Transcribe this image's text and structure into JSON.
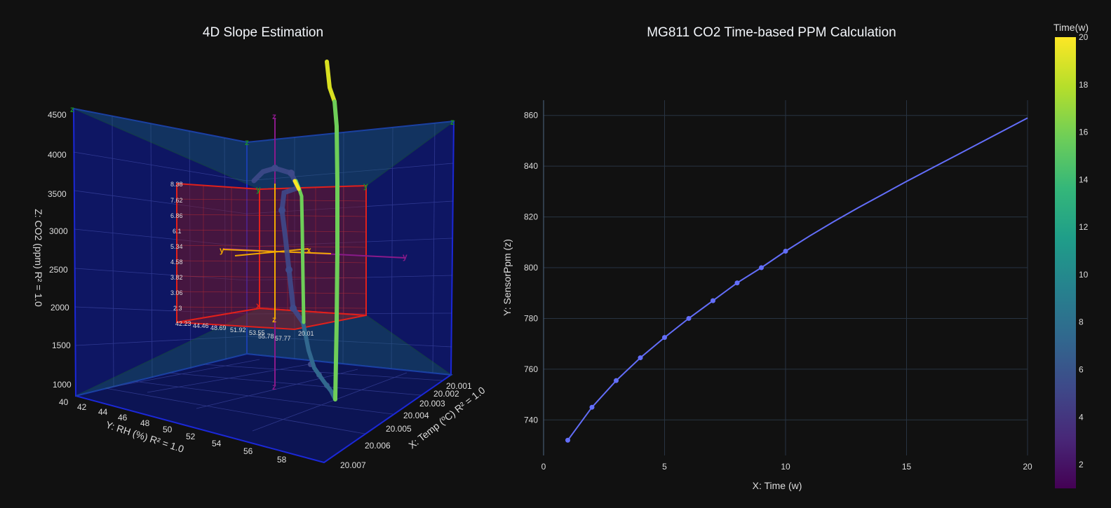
{
  "chart_data": [
    {
      "type": "scatter3d",
      "title": "4D Slope Estimation",
      "x_axis": {
        "label": "X: Temp (ºC) R² = 1.0",
        "ticks": [
          "20.001",
          "20.002",
          "20.003",
          "20.004",
          "20.005",
          "20.006",
          "20.007"
        ]
      },
      "y_axis": {
        "label": "Y: RH (%) R² = 1.0",
        "ticks": [
          "40",
          "42",
          "44",
          "46",
          "48",
          "50",
          "52",
          "54",
          "56",
          "58"
        ]
      },
      "z_axis": {
        "label": "Z: CO2 (ppm) R² = 1.0",
        "ticks": [
          "1000",
          "1500",
          "2000",
          "2500",
          "3000",
          "3500",
          "4000",
          "4500"
        ]
      },
      "inner_scale_ticks": [
        "8.38",
        "7.62",
        "6.86",
        "6.1",
        "5.34",
        "4.58",
        "3.82",
        "3.06",
        "2.3"
      ],
      "inner_floor_ticks": [
        "42.23",
        "44.46",
        "48.69",
        "51.92",
        "53.55",
        "55.78",
        "57.77",
        "20.01"
      ],
      "axis_markers": [
        "x",
        "y",
        "z"
      ],
      "color_axis": "Time(w)"
    },
    {
      "type": "line",
      "title": "MG811 CO2 Time-based PPM Calculation",
      "xlabel": "X: Time (w)",
      "ylabel": "Y: SensorPpm (z)",
      "xlim": [
        0,
        20
      ],
      "ylim": [
        726,
        866
      ],
      "xticks": [
        0,
        5,
        10,
        15,
        20
      ],
      "yticks": [
        740,
        760,
        780,
        800,
        820,
        840,
        860
      ],
      "grid": true,
      "series": [
        {
          "color": "#636efa",
          "marker_x": [
            1,
            2,
            3,
            4,
            5,
            6,
            7,
            8,
            9,
            10
          ],
          "marker_y": [
            732.0,
            745.0,
            755.5,
            764.5,
            772.5,
            780.0,
            787.0,
            794.0,
            800.0,
            806.5
          ],
          "x": [
            1,
            2,
            3,
            4,
            5,
            6,
            7,
            8,
            9,
            10,
            11,
            12,
            13,
            14,
            15,
            16,
            17,
            18,
            19,
            20
          ],
          "y": [
            732.0,
            745.0,
            755.5,
            764.5,
            772.5,
            780.0,
            787.0,
            794.0,
            800.0,
            806.5,
            812.5,
            818.2,
            823.6,
            828.8,
            834.0,
            839.0,
            844.0,
            849.0,
            854.0,
            859.0
          ]
        }
      ]
    }
  ],
  "colorbar": {
    "title": "Time(w)",
    "min": 1,
    "max": 20,
    "ticks": [
      2,
      4,
      6,
      8,
      10,
      12,
      14,
      16,
      18,
      20
    ],
    "colorscale": [
      "#440154",
      "#482878",
      "#3e4989",
      "#31688e",
      "#26828e",
      "#1f9e89",
      "#35b779",
      "#6ece58",
      "#b5de2b",
      "#fde725"
    ]
  }
}
